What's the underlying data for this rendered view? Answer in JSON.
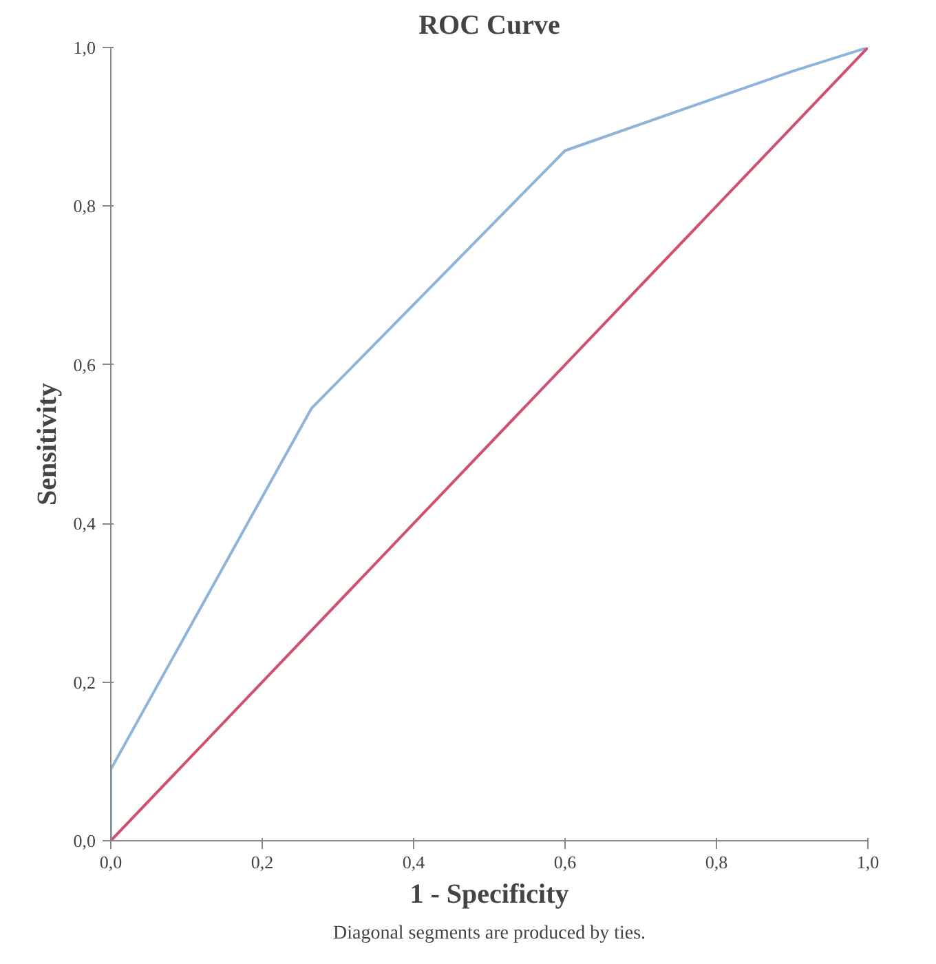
{
  "chart_data": {
    "type": "line",
    "title": "ROC Curve",
    "xlabel": "1 - Specificity",
    "ylabel": "Sensitivity",
    "annotations": [
      "Diagonal segments are produced by ties."
    ],
    "series": [
      {
        "color": "#8fb4d9",
        "x": [
          0,
          0,
          0.265,
          0.6,
          0.9,
          1
        ],
        "values": [
          0,
          0.09,
          0.545,
          0.87,
          0.97,
          1
        ]
      },
      {
        "color": "#d0506e",
        "x": [
          0,
          1
        ],
        "values": [
          0,
          1
        ]
      }
    ],
    "xlim": [
      0,
      1
    ],
    "ylim": [
      0,
      1
    ],
    "xticks": [
      {
        "value": 0,
        "label": "0,0"
      },
      {
        "value": 0.2,
        "label": "0,2"
      },
      {
        "value": 0.4,
        "label": "0,4"
      },
      {
        "value": 0.6,
        "label": "0,6"
      },
      {
        "value": 0.8,
        "label": "0,8"
      },
      {
        "value": 1,
        "label": "1,0"
      }
    ],
    "yticks": [
      {
        "value": 0,
        "label": "0,0"
      },
      {
        "value": 0.2,
        "label": "0,2"
      },
      {
        "value": 0.4,
        "label": "0,4"
      },
      {
        "value": 0.6,
        "label": "0,6"
      },
      {
        "value": 0.8,
        "label": "0,8"
      },
      {
        "value": 1,
        "label": "1,0"
      }
    ],
    "line_style": "solid"
  }
}
